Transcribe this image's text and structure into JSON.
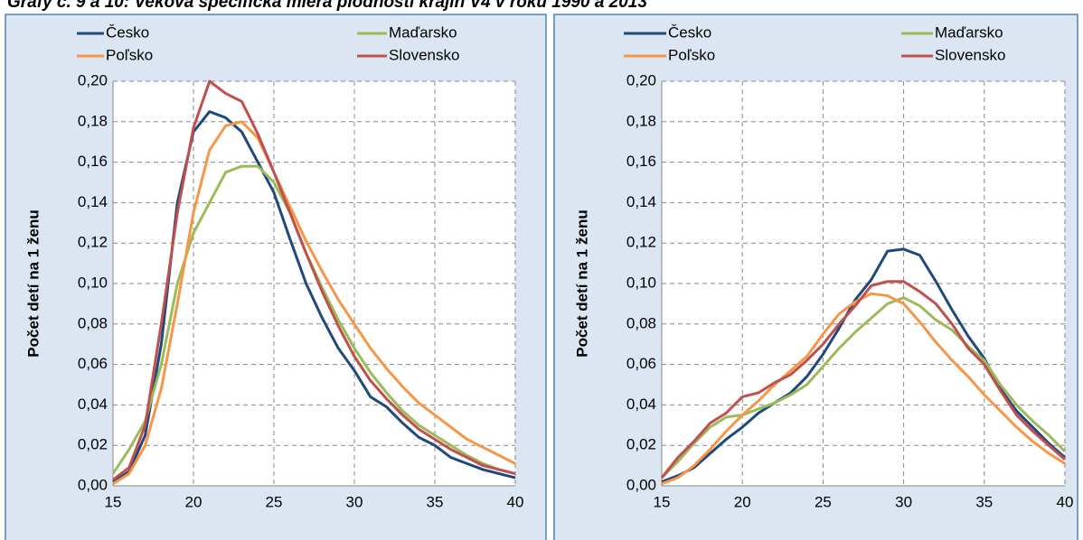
{
  "header": {
    "title": "Grafy č. 9 a 10: Veková špecifická miera plodnosti krajín V4 v roku 1990 a 2013"
  },
  "chart_data": [
    {
      "type": "line",
      "ylabel": "Počet detí na 1 ženu",
      "x": [
        15,
        16,
        17,
        18,
        19,
        20,
        21,
        22,
        23,
        24,
        25,
        26,
        27,
        28,
        29,
        30,
        31,
        32,
        33,
        34,
        35,
        36,
        37,
        38,
        39,
        40
      ],
      "xlim": [
        15,
        40
      ],
      "xticks": [
        15,
        20,
        25,
        30,
        35,
        40
      ],
      "ylim": [
        0,
        0.2
      ],
      "yticks": [
        {
          "value": 0,
          "label": "0,00"
        },
        {
          "value": 0.02,
          "label": "0,02"
        },
        {
          "value": 0.04,
          "label": "0,04"
        },
        {
          "value": 0.06,
          "label": "0,06"
        },
        {
          "value": 0.08,
          "label": "0,08"
        },
        {
          "value": 0.1,
          "label": "0,10"
        },
        {
          "value": 0.12,
          "label": "0,12"
        },
        {
          "value": 0.14,
          "label": "0,14"
        },
        {
          "value": 0.16,
          "label": "0,16"
        },
        {
          "value": 0.18,
          "label": "0,18"
        },
        {
          "value": 0.2,
          "label": "0,20"
        }
      ],
      "grid": true,
      "series": [
        {
          "name": "Česko",
          "color": "#1f497d",
          "values": [
            0.002,
            0.007,
            0.025,
            0.07,
            0.14,
            0.175,
            0.185,
            0.182,
            0.175,
            0.16,
            0.145,
            0.122,
            0.1,
            0.083,
            0.068,
            0.057,
            0.044,
            0.039,
            0.031,
            0.024,
            0.02,
            0.014,
            0.011,
            0.008,
            0.006,
            0.004
          ]
        },
        {
          "name": "Maďarsko",
          "color": "#9bbb59",
          "values": [
            0.006,
            0.018,
            0.032,
            0.06,
            0.1,
            0.125,
            0.14,
            0.155,
            0.158,
            0.158,
            0.15,
            0.135,
            0.115,
            0.098,
            0.082,
            0.068,
            0.056,
            0.046,
            0.037,
            0.03,
            0.025,
            0.02,
            0.015,
            0.011,
            0.008,
            0.006
          ]
        },
        {
          "name": "Poľsko",
          "color": "#f79646",
          "values": [
            0.001,
            0.006,
            0.02,
            0.048,
            0.09,
            0.135,
            0.166,
            0.178,
            0.18,
            0.172,
            0.155,
            0.138,
            0.121,
            0.106,
            0.092,
            0.08,
            0.068,
            0.058,
            0.049,
            0.041,
            0.035,
            0.029,
            0.023,
            0.019,
            0.015,
            0.011
          ]
        },
        {
          "name": "Slovensko",
          "color": "#c0504d",
          "values": [
            0.003,
            0.009,
            0.03,
            0.08,
            0.135,
            0.177,
            0.2,
            0.194,
            0.19,
            0.174,
            0.155,
            0.135,
            0.115,
            0.096,
            0.079,
            0.064,
            0.052,
            0.043,
            0.035,
            0.028,
            0.023,
            0.018,
            0.014,
            0.01,
            0.008,
            0.006
          ]
        }
      ]
    },
    {
      "type": "line",
      "ylabel": "Počet detí na 1 ženu",
      "x": [
        15,
        16,
        17,
        18,
        19,
        20,
        21,
        22,
        23,
        24,
        25,
        26,
        27,
        28,
        29,
        30,
        31,
        32,
        33,
        34,
        35,
        36,
        37,
        38,
        39,
        40
      ],
      "xlim": [
        15,
        40
      ],
      "xticks": [
        15,
        20,
        25,
        30,
        35,
        40
      ],
      "ylim": [
        0,
        0.2
      ],
      "yticks": [
        {
          "value": 0,
          "label": "0,00"
        },
        {
          "value": 0.02,
          "label": "0,02"
        },
        {
          "value": 0.04,
          "label": "0,04"
        },
        {
          "value": 0.06,
          "label": "0,06"
        },
        {
          "value": 0.08,
          "label": "0,08"
        },
        {
          "value": 0.1,
          "label": "0,10"
        },
        {
          "value": 0.12,
          "label": "0,12"
        },
        {
          "value": 0.14,
          "label": "0,14"
        },
        {
          "value": 0.16,
          "label": "0,16"
        },
        {
          "value": 0.18,
          "label": "0,18"
        },
        {
          "value": 0.2,
          "label": "0,20"
        }
      ],
      "grid": true,
      "series": [
        {
          "name": "Česko",
          "color": "#1f497d",
          "values": [
            0.002,
            0.005,
            0.009,
            0.016,
            0.023,
            0.029,
            0.036,
            0.041,
            0.046,
            0.054,
            0.065,
            0.078,
            0.092,
            0.102,
            0.116,
            0.117,
            0.114,
            0.101,
            0.087,
            0.074,
            0.063,
            0.048,
            0.037,
            0.029,
            0.021,
            0.014
          ]
        },
        {
          "name": "Maďarsko",
          "color": "#9bbb59",
          "values": [
            0.004,
            0.012,
            0.021,
            0.029,
            0.034,
            0.035,
            0.038,
            0.041,
            0.045,
            0.05,
            0.059,
            0.068,
            0.076,
            0.083,
            0.09,
            0.093,
            0.089,
            0.082,
            0.077,
            0.069,
            0.062,
            0.05,
            0.04,
            0.032,
            0.025,
            0.017
          ]
        },
        {
          "name": "Poľsko",
          "color": "#f79646",
          "values": [
            0.001,
            0.004,
            0.01,
            0.018,
            0.027,
            0.035,
            0.042,
            0.05,
            0.057,
            0.064,
            0.075,
            0.085,
            0.091,
            0.095,
            0.094,
            0.09,
            0.081,
            0.071,
            0.062,
            0.054,
            0.045,
            0.037,
            0.029,
            0.022,
            0.016,
            0.011
          ]
        },
        {
          "name": "Slovensko",
          "color": "#c0504d",
          "values": [
            0.004,
            0.014,
            0.022,
            0.031,
            0.036,
            0.044,
            0.046,
            0.051,
            0.055,
            0.062,
            0.07,
            0.08,
            0.089,
            0.099,
            0.101,
            0.101,
            0.096,
            0.09,
            0.08,
            0.068,
            0.06,
            0.047,
            0.035,
            0.027,
            0.02,
            0.013
          ]
        }
      ]
    }
  ]
}
